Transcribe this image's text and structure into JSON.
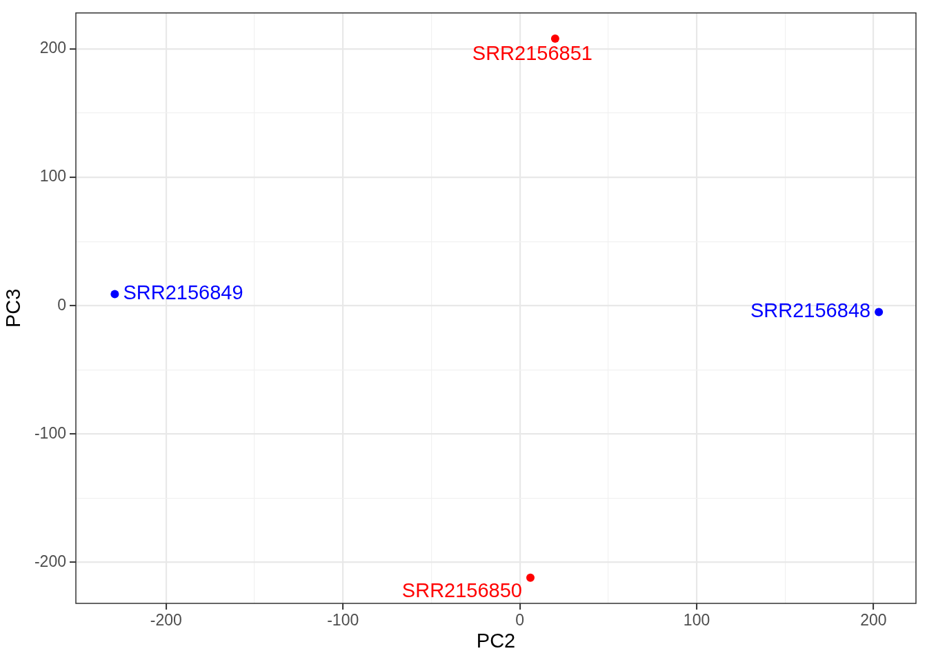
{
  "chart_data": {
    "type": "scatter",
    "xlabel": "PC2",
    "ylabel": "PC3",
    "series": [
      {
        "name": "SRR2156848",
        "color": "#0000ff",
        "x": [
          203
        ],
        "values": [
          -5
        ]
      },
      {
        "name": "SRR2156849",
        "color": "#0000ff",
        "x": [
          -229
        ],
        "values": [
          9
        ]
      },
      {
        "name": "SRR2156850",
        "color": "#ff0000",
        "x": [
          6
        ],
        "values": [
          -212
        ]
      },
      {
        "name": "SRR2156851",
        "color": "#ff0000",
        "x": [
          20
        ],
        "values": [
          208
        ]
      }
    ],
    "xlim": [
      -251,
      224
    ],
    "ylim": [
      -232,
      228
    ],
    "xticks": [
      {
        "value": -250,
        "label": null
      },
      -200,
      {
        "value": -150,
        "label": null
      },
      -100,
      {
        "value": -50,
        "label": null
      },
      0,
      {
        "value": 50,
        "label": null
      },
      100,
      {
        "value": 150,
        "label": null
      },
      200
    ],
    "yticks": [
      -200,
      {
        "value": -150,
        "label": null
      },
      -100,
      {
        "value": -50,
        "label": null
      },
      0,
      {
        "value": 50,
        "label": null
      },
      100,
      {
        "value": 150,
        "label": null
      },
      200
    ],
    "grid": true,
    "marker": "circle"
  }
}
